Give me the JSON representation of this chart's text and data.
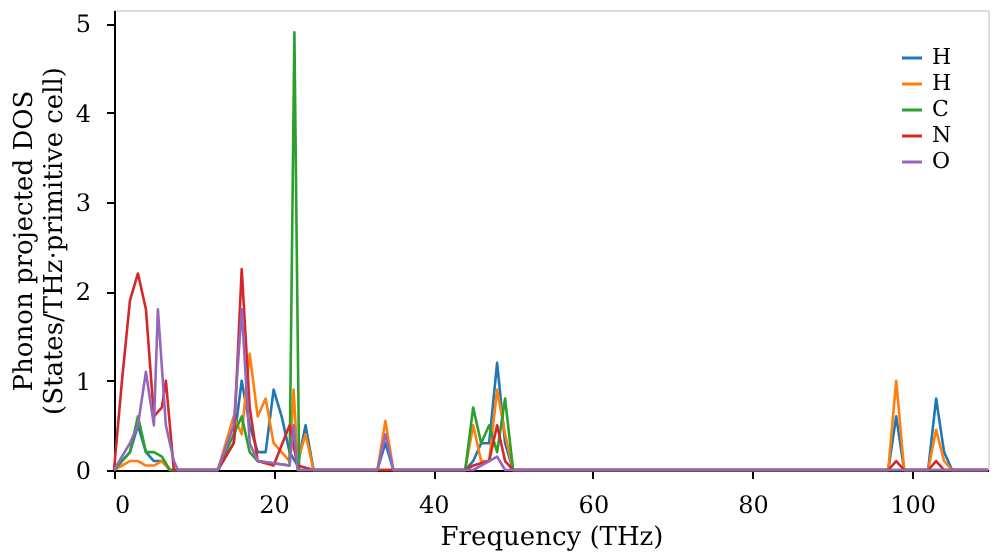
{
  "chart_data": {
    "type": "line",
    "xlabel": "Frequency (THz)",
    "ylabel": "Phonon projected DOS\n(States/THz·primitive cell)",
    "xlim": [
      0,
      109.5
    ],
    "ylim": [
      0,
      5.15
    ],
    "xticks": [
      0,
      20,
      40,
      60,
      80,
      100
    ],
    "yticks": [
      0,
      1,
      2,
      3,
      4,
      5
    ],
    "grid": false,
    "legend": "top right",
    "marker": "none",
    "line_style": "solid",
    "series": [
      {
        "name": "H",
        "color": "#1f77b4",
        "x": [
          0,
          2,
          3,
          4,
          5,
          6,
          7,
          13,
          15,
          16,
          17,
          18,
          19,
          20,
          21,
          22,
          23,
          24,
          25,
          33,
          34,
          35,
          44,
          45,
          46,
          47,
          48,
          49,
          50,
          97,
          98,
          99,
          102,
          103,
          104,
          105,
          109.5
        ],
        "values": [
          0,
          0.2,
          0.5,
          0.2,
          0.1,
          0.1,
          0,
          0,
          0.3,
          1.0,
          0.5,
          0.2,
          0.2,
          0.9,
          0.6,
          0.2,
          0.05,
          0.5,
          0,
          0,
          0.3,
          0,
          0,
          0.1,
          0.3,
          0.3,
          1.2,
          0.3,
          0,
          0,
          0.6,
          0,
          0,
          0.8,
          0.2,
          0,
          0
        ]
      },
      {
        "name": "H",
        "color": "#ff7f0e",
        "x": [
          0,
          2,
          3,
          4,
          5,
          6,
          7,
          13,
          14,
          15,
          16,
          17,
          18,
          19,
          20,
          21,
          22,
          22.5,
          23,
          24,
          25,
          33,
          34,
          35,
          44,
          45,
          46,
          47,
          48,
          49,
          50,
          97,
          98,
          99,
          102,
          103,
          104,
          105,
          109.5
        ],
        "values": [
          0,
          0.1,
          0.1,
          0.05,
          0.05,
          0.1,
          0,
          0,
          0.3,
          0.6,
          0.4,
          1.3,
          0.6,
          0.8,
          0.3,
          0.2,
          0.1,
          0.9,
          0.1,
          0.4,
          0,
          0,
          0.55,
          0,
          0,
          0.5,
          0.1,
          0.1,
          0.9,
          0.4,
          0,
          0,
          1.0,
          0,
          0,
          0.45,
          0.1,
          0,
          0
        ]
      },
      {
        "name": "C",
        "color": "#2ca02c",
        "x": [
          0,
          2,
          3,
          4,
          5,
          6,
          7,
          13,
          15,
          16,
          17,
          18,
          22,
          22.6,
          23.2,
          25,
          44,
          45,
          46,
          47,
          48,
          49,
          50,
          109.5
        ],
        "values": [
          0,
          0.2,
          0.6,
          0.2,
          0.2,
          0.15,
          0,
          0,
          0.4,
          0.6,
          0.2,
          0.1,
          0.05,
          4.9,
          0,
          0,
          0,
          0.7,
          0.3,
          0.5,
          0.2,
          0.8,
          0,
          0
        ]
      },
      {
        "name": "N",
        "color": "#d62728",
        "x": [
          0,
          1,
          2,
          3,
          4,
          5,
          6,
          6.5,
          7.5,
          13,
          15,
          16,
          17,
          18,
          20,
          22,
          23,
          25,
          44,
          45,
          47,
          48,
          49,
          50,
          97,
          98,
          99,
          102,
          103,
          104,
          109.5
        ],
        "values": [
          0,
          1.0,
          1.9,
          2.2,
          1.8,
          0.6,
          0.7,
          1.0,
          0,
          0,
          0.3,
          2.25,
          0.7,
          0.1,
          0.05,
          0.5,
          0.05,
          0,
          0,
          0.05,
          0.1,
          0.5,
          0.1,
          0,
          0,
          0.1,
          0,
          0,
          0.1,
          0,
          0
        ]
      },
      {
        "name": "O",
        "color": "#9467bd",
        "x": [
          0,
          2,
          3,
          4,
          5,
          5.5,
          6.5,
          7.5,
          8,
          13,
          15,
          16,
          17,
          18,
          22,
          22.5,
          23,
          33,
          34,
          35,
          45,
          48,
          49,
          109.5
        ],
        "values": [
          0,
          0.3,
          0.5,
          1.1,
          0.5,
          1.8,
          0.5,
          0.1,
          0,
          0,
          0.5,
          1.8,
          0.3,
          0.1,
          0.05,
          0.5,
          0,
          0,
          0.4,
          0,
          0,
          0.15,
          0,
          0
        ]
      }
    ]
  }
}
